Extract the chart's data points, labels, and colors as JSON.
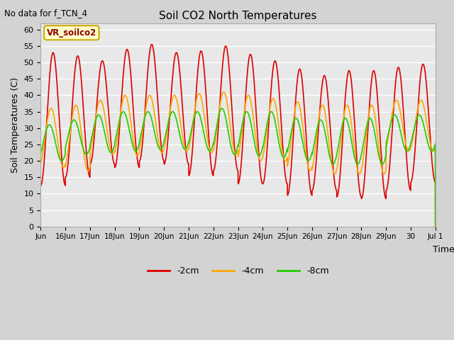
{
  "title": "Soil CO2 North Temperatures",
  "no_data_label": "No data for f_TCN_4",
  "ylabel": "Soil Temperatures (C)",
  "xlabel": "Time",
  "legend_label": "VR_soilco2",
  "ylim": [
    0,
    62
  ],
  "yticks": [
    0,
    5,
    10,
    15,
    20,
    25,
    30,
    35,
    40,
    45,
    50,
    55,
    60
  ],
  "background_color": "#d3d3d3",
  "plot_bg_color": "#e8e8e8",
  "line_colors": {
    "-2cm": "#dd0000",
    "-4cm": "#ffa500",
    "-8cm": "#22cc00"
  },
  "xtick_labels": [
    "Jun",
    "16Jun",
    "17Jun",
    "18Jun",
    "19Jun",
    "20Jun",
    "21Jun",
    "22Jun",
    "23Jun",
    "24Jun",
    "25Jun",
    "26Jun",
    "27Jun",
    "28Jun",
    "29Jun",
    "30",
    "Jul 1"
  ],
  "total_days": 16.0,
  "red_peaks": [
    53.0,
    52.0,
    50.5,
    54.0,
    55.5,
    53.0,
    53.5,
    55.0,
    52.5,
    50.5,
    48.0,
    46.0,
    47.5,
    47.5,
    48.5,
    49.5
  ],
  "red_troughs": [
    12.5,
    15.0,
    19.0,
    18.0,
    20.0,
    19.0,
    15.5,
    17.0,
    13.0,
    13.0,
    9.5,
    11.0,
    9.0,
    8.5,
    11.0,
    13.5
  ],
  "red_phase": 0.0,
  "orange_peaks": [
    36.0,
    37.0,
    38.5,
    40.0,
    40.0,
    40.0,
    40.5,
    41.0,
    40.0,
    39.0,
    38.0,
    37.0,
    37.0,
    37.0,
    38.5,
    38.5
  ],
  "orange_troughs": [
    18.0,
    17.0,
    22.0,
    21.5,
    22.5,
    23.0,
    22.5,
    22.0,
    20.0,
    20.0,
    17.0,
    16.0,
    16.0,
    16.0,
    23.0,
    23.0
  ],
  "orange_phase": 0.08,
  "green_peaks": [
    31.0,
    32.5,
    34.0,
    35.0,
    35.0,
    35.0,
    35.0,
    36.0,
    35.0,
    35.0,
    33.0,
    32.5,
    33.0,
    33.0,
    34.0,
    34.0
  ],
  "green_troughs": [
    20.0,
    22.0,
    22.5,
    23.0,
    23.5,
    23.5,
    23.0,
    22.0,
    21.5,
    21.0,
    20.0,
    19.0,
    19.0,
    19.0,
    23.0,
    23.0
  ],
  "green_phase": 0.15
}
